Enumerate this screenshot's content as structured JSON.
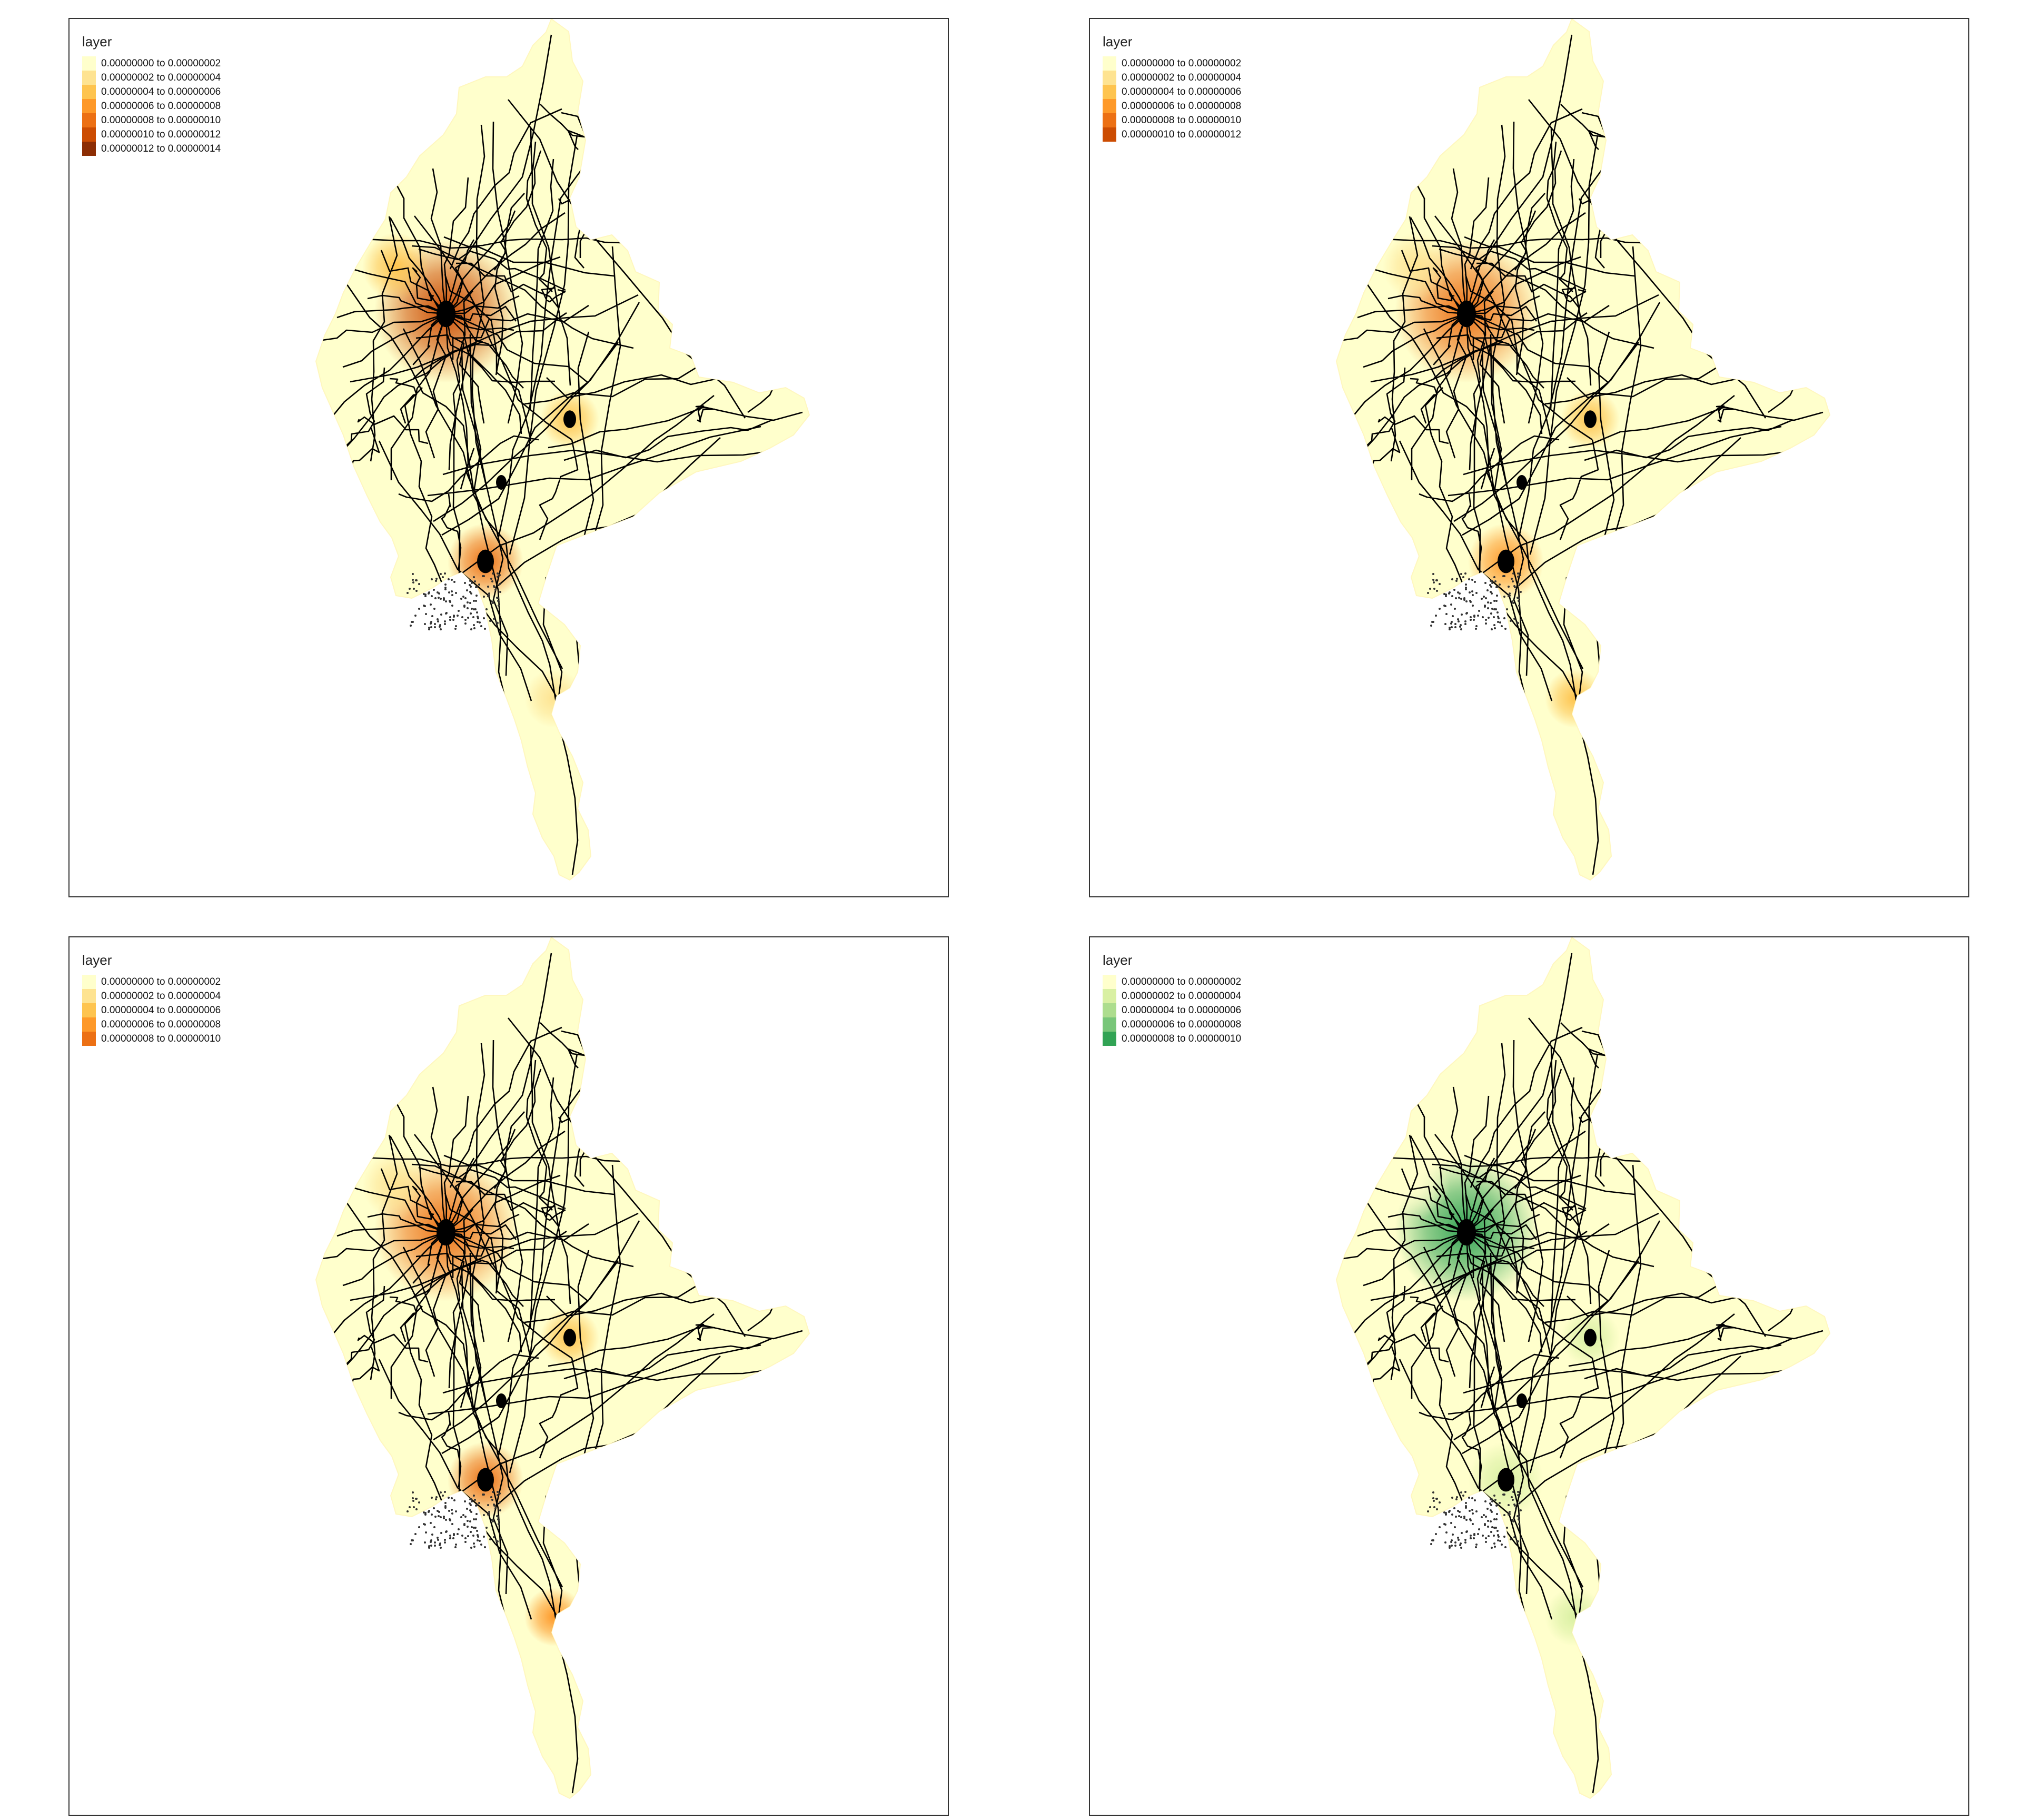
{
  "panels": [
    {
      "id": "p1",
      "legend": {
        "title": "layer",
        "items": [
          {
            "label": "0.00000000 to 0.00000002",
            "color": "#FFFFCC"
          },
          {
            "label": "0.00000002 to 0.00000004",
            "color": "#FEE391"
          },
          {
            "label": "0.00000004 to 0.00000006",
            "color": "#FEC44F"
          },
          {
            "label": "0.00000006 to 0.00000008",
            "color": "#FE9929"
          },
          {
            "label": "0.00000008 to 0.00000010",
            "color": "#EC7014"
          },
          {
            "label": "0.00000010 to 0.00000012",
            "color": "#CC4C02"
          },
          {
            "label": "0.00000012 to 0.00000014",
            "color": "#8C2D04"
          }
        ]
      },
      "hotspots": [
        {
          "color": "#CC4C02"
        },
        {
          "color": "#EC7014"
        },
        {
          "color": "#FEC44F"
        },
        {
          "color": "#FEC44F"
        },
        {
          "color": "#FEE391"
        },
        {
          "color": "#FEE391"
        }
      ]
    },
    {
      "id": "p2",
      "legend": {
        "title": "layer",
        "items": [
          {
            "label": "0.00000000 to 0.00000002",
            "color": "#FFFFCC"
          },
          {
            "label": "0.00000002 to 0.00000004",
            "color": "#FEE391"
          },
          {
            "label": "0.00000004 to 0.00000006",
            "color": "#FEC44F"
          },
          {
            "label": "0.00000006 to 0.00000008",
            "color": "#FE9929"
          },
          {
            "label": "0.00000008 to 0.00000010",
            "color": "#EC7014"
          },
          {
            "label": "0.00000010 to 0.00000012",
            "color": "#CC4C02"
          }
        ]
      },
      "hotspots": [
        {
          "color": "#EC7014"
        },
        {
          "color": "#FE9929"
        },
        {
          "color": "#FEC44F"
        },
        {
          "color": "#FEE391"
        },
        {
          "color": "#FEC44F"
        },
        {
          "color": "#FEE391"
        }
      ]
    },
    {
      "id": "p3",
      "legend": {
        "title": "layer",
        "items": [
          {
            "label": "0.00000000 to 0.00000002",
            "color": "#FFFFCC"
          },
          {
            "label": "0.00000002 to 0.00000004",
            "color": "#FEE391"
          },
          {
            "label": "0.00000004 to 0.00000006",
            "color": "#FEC44F"
          },
          {
            "label": "0.00000006 to 0.00000008",
            "color": "#FE9929"
          },
          {
            "label": "0.00000008 to 0.00000010",
            "color": "#EC7014"
          }
        ]
      },
      "hotspots": [
        {
          "color": "#EC7014"
        },
        {
          "color": "#EC7014"
        },
        {
          "color": "#FEC44F"
        },
        {
          "color": "#FEE391"
        },
        {
          "color": "#FE9929"
        },
        {
          "color": "#FEE391"
        }
      ]
    },
    {
      "id": "p4",
      "legend": {
        "title": "layer",
        "items": [
          {
            "label": "0.00000000 to 0.00000002",
            "color": "#FFFFCC"
          },
          {
            "label": "0.00000002 to 0.00000004",
            "color": "#D9F0A3"
          },
          {
            "label": "0.00000004 to 0.00000006",
            "color": "#ADDD8E"
          },
          {
            "label": "0.00000006 to 0.00000008",
            "color": "#78C679"
          },
          {
            "label": "0.00000008 to 0.00000010",
            "color": "#31A354"
          }
        ]
      },
      "hotspots": [
        {
          "color": "#31A354"
        },
        {
          "color": "#D9F0A3"
        },
        {
          "color": "#D9F0A3"
        },
        {
          "color": "#FFFFCC"
        },
        {
          "color": "#D9F0A3"
        },
        {
          "color": "#D9F0A3"
        }
      ]
    }
  ]
}
